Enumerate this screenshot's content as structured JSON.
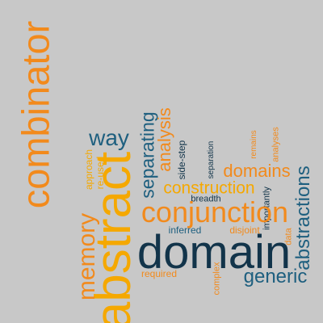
{
  "background": "#c8c8c8",
  "palette": {
    "orange": "#f28a1c",
    "gold": "#f5a800",
    "teal": "#1e5f7f",
    "navy": "#12344a"
  },
  "words": {
    "combinator": "combinator",
    "abstract": "abstract",
    "domain": "domain",
    "conjunction": "conjunction",
    "memory": "memory",
    "analysis": "analysis",
    "separating": "separating",
    "construction": "construction",
    "domains": "domains",
    "abstractions": "abstractions",
    "generic": "generic",
    "way": "way",
    "approach": "approach",
    "reused": "re-used",
    "sidestep": "side-step",
    "separation": "separation",
    "remains": "remains",
    "analyses": "analyses",
    "breadth": "breadth",
    "importantly": "importantly",
    "inferred": "inferred",
    "disjoint": "disjoint",
    "data": "data",
    "required": "required",
    "complex": "complex"
  }
}
